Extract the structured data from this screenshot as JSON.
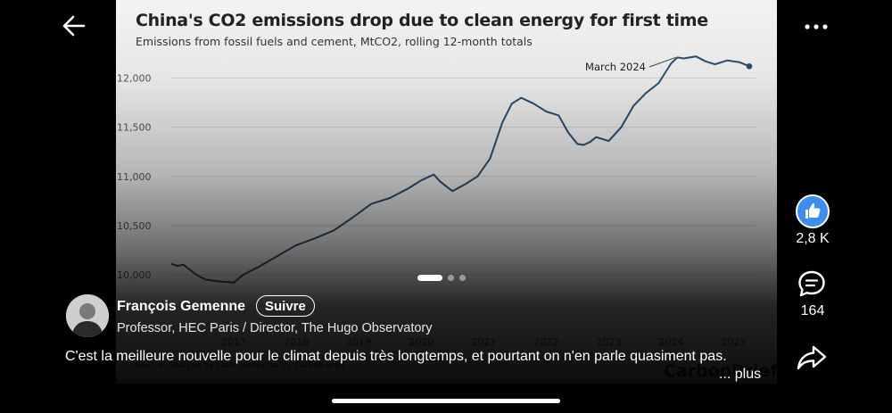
{
  "post": {
    "author_name": "François Gemenne",
    "follow_label": "Suivre",
    "author_headline": "Professor, HEC Paris / Director, The Hugo Observatory",
    "caption": "C'est la meilleure nouvelle pour le climat depuis très longtemps, et pourtant on n'en parle quasiment pas.",
    "more_label": "... plus"
  },
  "actions": {
    "like_count": "2,8 K",
    "comment_count": "164"
  },
  "carousel": {
    "pages": 3,
    "current": 1
  },
  "icons": {
    "back": "back-arrow-icon",
    "more": "more-options-icon",
    "like": "thumbs-up-icon",
    "comment": "comment-icon",
    "share": "share-icon"
  },
  "colors": {
    "line": "#2d4f6e",
    "like_badge": "#3c8df2"
  },
  "chart_data": {
    "type": "line",
    "title": "China's CO2 emissions drop due to clean energy for first time",
    "subtitle": "Emissions from fossil fuels and cement, MtCO2, rolling 12-month totals",
    "annotation": "March 2024",
    "ylim": [
      9800,
      12250
    ],
    "xlim": [
      2016.0,
      2025.35
    ],
    "yticks": [
      10000,
      10500,
      11000,
      11500,
      12000
    ],
    "ytick_labels": [
      "10,000",
      "10,500",
      "11,000",
      "11,500",
      "12,000"
    ],
    "xticks": [
      2017,
      2018,
      2019,
      2020,
      2021,
      2022,
      2023,
      2024,
      2025
    ],
    "xtick_labels": [
      "2017",
      "2018",
      "2019",
      "2020",
      "2021",
      "2022",
      "2023",
      "2024",
      "2025"
    ],
    "source": "Source: Analysis by Lauri Myllyvirta for Carbon Brief",
    "logo": "CarbonBrief",
    "series": [
      {
        "x": [
          2016.0,
          2016.1,
          2016.2,
          2016.4,
          2016.55,
          2016.8,
          2017.0,
          2017.15,
          2017.4,
          2017.7,
          2018.0,
          2018.3,
          2018.6,
          2018.9,
          2019.2,
          2019.5,
          2019.8,
          2020.0,
          2020.2,
          2020.3,
          2020.5,
          2020.7,
          2020.9,
          2021.1,
          2021.3,
          2021.45,
          2021.6,
          2021.8,
          2022.0,
          2022.2,
          2022.35,
          2022.5,
          2022.6,
          2022.7,
          2022.8,
          2022.9,
          2023.0,
          2023.2,
          2023.4,
          2023.6,
          2023.8,
          2024.0,
          2024.1,
          2024.2,
          2024.4,
          2024.55,
          2024.7,
          2024.9,
          2025.1,
          2025.25
        ],
        "y": [
          10110,
          10090,
          10100,
          10000,
          9950,
          9930,
          9920,
          10000,
          10080,
          10190,
          10300,
          10370,
          10450,
          10580,
          10720,
          10780,
          10880,
          10960,
          11020,
          10950,
          10850,
          10920,
          11000,
          11180,
          11550,
          11740,
          11800,
          11740,
          11660,
          11620,
          11450,
          11330,
          11320,
          11350,
          11400,
          11380,
          11360,
          11500,
          11720,
          11850,
          11950,
          12150,
          12210,
          12200,
          12220,
          12170,
          12140,
          12180,
          12160,
          12120
        ]
      }
    ]
  }
}
